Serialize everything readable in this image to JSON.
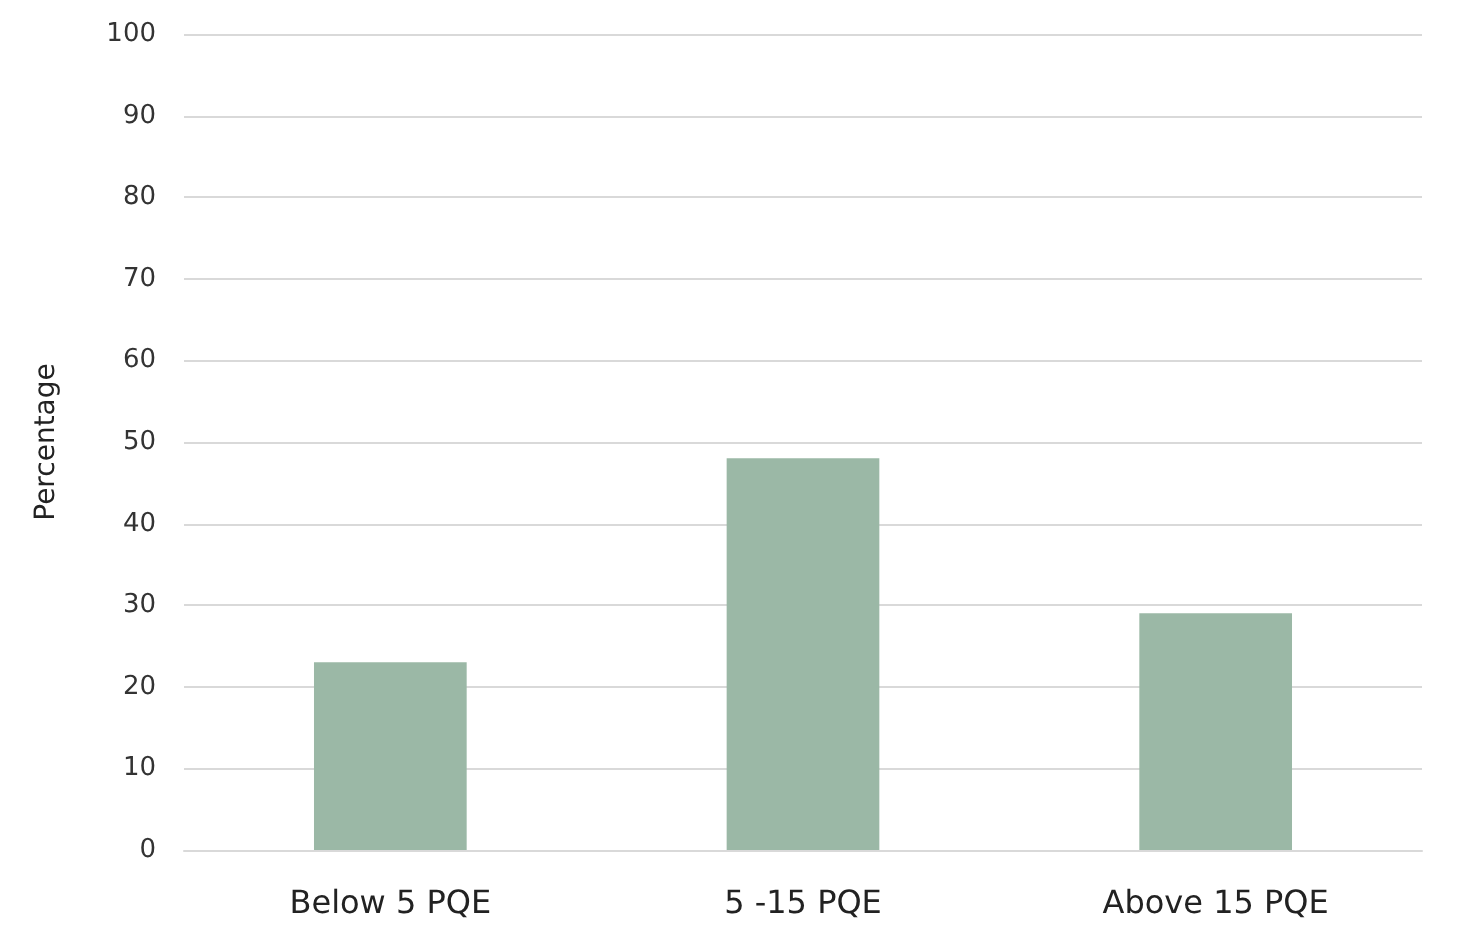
{
  "chart_data": {
    "type": "bar",
    "ylabel": "Percentage",
    "categories": [
      "Below 5 PQE",
      "5 -15 PQE",
      "Above 15 PQE"
    ],
    "values": [
      23,
      48,
      29
    ],
    "color": "#9bb8a6",
    "ylim": [
      0,
      100
    ],
    "yticks": [
      0,
      10,
      20,
      30,
      40,
      50,
      60,
      70,
      80,
      90,
      100
    ],
    "grid": "y"
  }
}
